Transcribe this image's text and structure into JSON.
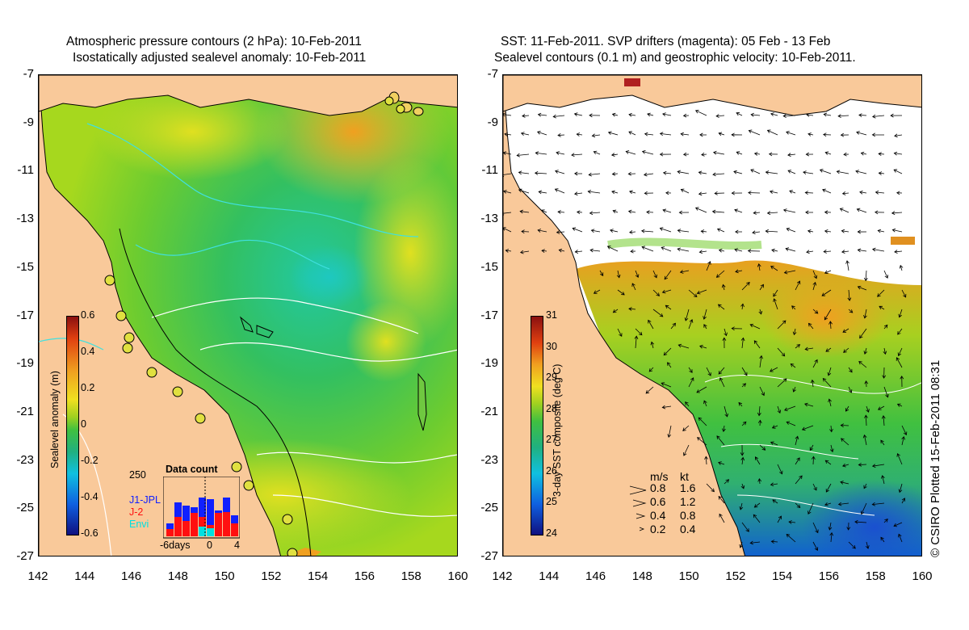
{
  "left_panel": {
    "title_line1": "Atmospheric pressure contours (2 hPa): 10-Feb-2011",
    "title_line2": "Isostatically adjusted sealevel anomaly: 10-Feb-2011",
    "colorbar": {
      "label": "Sealevel anomaly (m)",
      "ticks": [
        "0.6",
        "0.4",
        "0.2",
        "0",
        "-0.2",
        "-0.4",
        "-0.6"
      ],
      "range": [
        -0.6,
        0.6
      ]
    },
    "inset": {
      "title": "Data count",
      "ymax_label": "250",
      "legend": [
        {
          "name": "J1-JPL",
          "color": "#1020ff"
        },
        {
          "name": "J-2",
          "color": "#ff1010"
        },
        {
          "name": "Envi",
          "color": "#00e0e0"
        }
      ],
      "x_labels": [
        "-6days",
        "0",
        "4"
      ]
    }
  },
  "right_panel": {
    "title_line1": "SST: 11-Feb-2011. SVP drifters (magenta): 05 Feb - 13 Feb",
    "title_line2": "Sealevel contours (0.1 m) and geostrophic velocity: 10-Feb-2011.",
    "colorbar": {
      "label": "3-day SST composite (deg C)",
      "ticks": [
        "31",
        "30",
        "29",
        "28",
        "27",
        "26",
        "25",
        "24"
      ],
      "range": [
        24,
        31
      ]
    },
    "velocity_legend": {
      "header_ms": "m/s",
      "header_kt": "kt",
      "rows": [
        {
          "ms": "0.8",
          "kt": "1.6"
        },
        {
          "ms": "0.6",
          "kt": "1.2"
        },
        {
          "ms": "0.4",
          "kt": "0.8"
        },
        {
          "ms": "0.2",
          "kt": "0.4"
        }
      ]
    }
  },
  "axes": {
    "y_ticks": [
      "-7",
      "-9",
      "-11",
      "-13",
      "-15",
      "-17",
      "-19",
      "-21",
      "-23",
      "-25",
      "-27"
    ],
    "x_ticks": [
      "142",
      "144",
      "146",
      "148",
      "150",
      "152",
      "154",
      "156",
      "158",
      "160"
    ],
    "lon_range": [
      142,
      160
    ],
    "lat_range": [
      -27,
      -7
    ]
  },
  "credit": "© CSIRO Plotted 15-Feb-2011 08:31",
  "colors": {
    "land": "#f9c99a",
    "coast": "#000000"
  }
}
